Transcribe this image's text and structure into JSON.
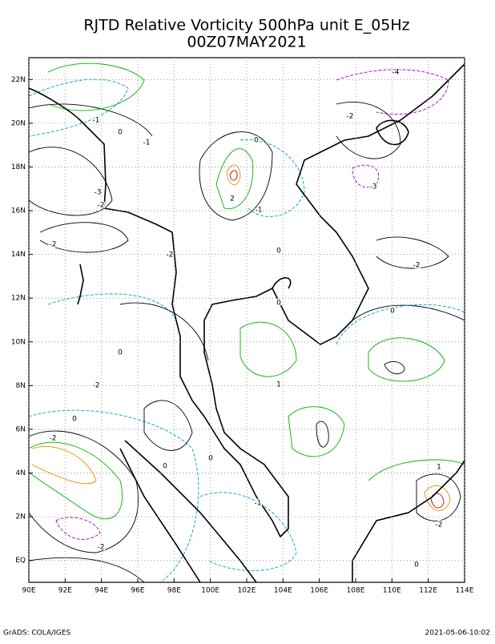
{
  "title": {
    "line1": "RJTD Relative Vorticity 500hPa unit E_05Hz",
    "line2": "00Z07MAY2021"
  },
  "map": {
    "lon_ticks": [
      {
        "value": 90,
        "label": "90E"
      },
      {
        "value": 92,
        "label": "92E"
      },
      {
        "value": 94,
        "label": "94E"
      },
      {
        "value": 96,
        "label": "96E"
      },
      {
        "value": 98,
        "label": "98E"
      },
      {
        "value": 100,
        "label": "100E"
      },
      {
        "value": 102,
        "label": "102E"
      },
      {
        "value": 104,
        "label": "104E"
      },
      {
        "value": 106,
        "label": "106E"
      },
      {
        "value": 108,
        "label": "108E"
      },
      {
        "value": 110,
        "label": "110E"
      },
      {
        "value": 112,
        "label": "112E"
      },
      {
        "value": 114,
        "label": "114E"
      }
    ],
    "lat_ticks": [
      {
        "value": 0,
        "label": "EQ"
      },
      {
        "value": 2,
        "label": "2N"
      },
      {
        "value": 4,
        "label": "4N"
      },
      {
        "value": 6,
        "label": "6N"
      },
      {
        "value": 8,
        "label": "8N"
      },
      {
        "value": 10,
        "label": "10N"
      },
      {
        "value": 12,
        "label": "12N"
      },
      {
        "value": 14,
        "label": "14N"
      },
      {
        "value": 16,
        "label": "16N"
      },
      {
        "value": 18,
        "label": "18N"
      },
      {
        "value": 20,
        "label": "20N"
      },
      {
        "value": 22,
        "label": "22N"
      }
    ],
    "lon_range": [
      90,
      114
    ],
    "lat_range": [
      -1,
      23
    ]
  },
  "contour_labels": [
    "-4",
    "-2",
    "-1",
    "0",
    "-1",
    "0",
    "2",
    "-3",
    "-2",
    "-3",
    "-1",
    "-2",
    "-2",
    "0",
    "-2",
    "0",
    "0",
    "0",
    "1",
    "-2",
    "0",
    "-2",
    "0",
    "0",
    "1",
    "-2",
    "-2",
    "0",
    "-1"
  ],
  "footer": {
    "left": "GrADS: COLA/IGES",
    "right": "2021-05-06-10:02"
  }
}
